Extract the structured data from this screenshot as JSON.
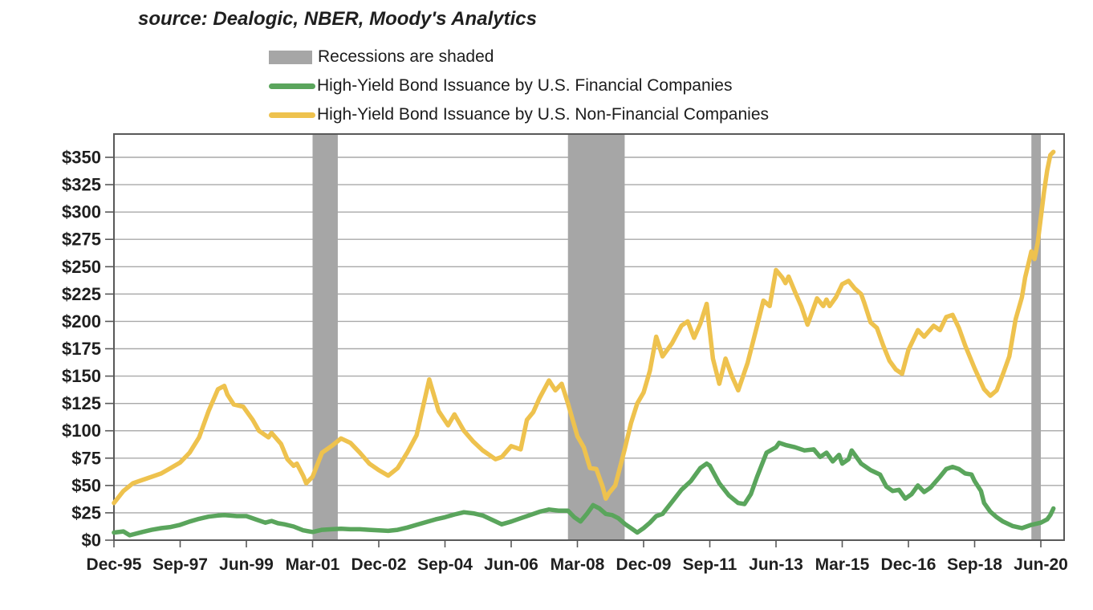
{
  "source_note": "source: Dealogic, NBER, Moody's Analytics",
  "legend": [
    {
      "type": "band",
      "label": "Recessions are shaded",
      "color": "#a6a6a6"
    },
    {
      "type": "line",
      "label": "High-Yield Bond Issuance by U.S. Financial Companies",
      "color": "#5aa55c"
    },
    {
      "type": "line",
      "label": "High-Yield Bond Issuance by U.S. Non-Financial Companies",
      "color": "#eec24e"
    }
  ],
  "chart_data": {
    "type": "line",
    "title": "",
    "x_unit": "months since Dec-1995 (monthly time axis)",
    "x_tick_labels": [
      "Dec-95",
      "Sep-97",
      "Jun-99",
      "Mar-01",
      "Dec-02",
      "Sep-04",
      "Jun-06",
      "Mar-08",
      "Dec-09",
      "Sep-11",
      "Jun-13",
      "Mar-15",
      "Dec-16",
      "Sep-18",
      "Jun-20"
    ],
    "x_tick_months": [
      0,
      21,
      42,
      63,
      84,
      105,
      126,
      147,
      168,
      189,
      210,
      231,
      252,
      273,
      294
    ],
    "xlim_months": [
      0,
      301.4
    ],
    "ylim": [
      0,
      371
    ],
    "y_tick_values": [
      0,
      25,
      50,
      75,
      100,
      125,
      150,
      175,
      200,
      225,
      250,
      275,
      300,
      325,
      350
    ],
    "y_tick_labels": [
      "$0",
      "$25",
      "$50",
      "$75",
      "$100",
      "$125",
      "$150",
      "$175",
      "$200",
      "$225",
      "$250",
      "$275",
      "$300",
      "$325",
      "$350"
    ],
    "grid": "horizontal",
    "legend_position": "top-left above plot",
    "recession_bands": [
      {
        "label": "2001 recession",
        "from_month": 63,
        "to_month": 71
      },
      {
        "label": "2007-09 recession",
        "from_month": 144,
        "to_month": 162
      },
      {
        "label": "2020 recession",
        "from_month": 291,
        "to_month": 294
      }
    ],
    "band_color": "#a6a6a6",
    "series": [
      {
        "name": "High-Yield Bond Issuance by U.S. Financial Companies",
        "color": "#5aa55c",
        "points": [
          [
            0,
            7
          ],
          [
            3,
            8
          ],
          [
            5,
            4.5
          ],
          [
            9,
            7.5
          ],
          [
            12,
            9.5
          ],
          [
            15,
            11
          ],
          [
            18,
            12
          ],
          [
            21,
            14
          ],
          [
            24,
            17
          ],
          [
            27,
            19.5
          ],
          [
            30,
            21.5
          ],
          [
            33,
            22.5
          ],
          [
            35,
            23
          ],
          [
            39,
            22
          ],
          [
            42,
            22
          ],
          [
            45,
            19
          ],
          [
            48,
            16
          ],
          [
            50,
            17.5
          ],
          [
            52,
            15.5
          ],
          [
            54,
            14.5
          ],
          [
            57,
            12.5
          ],
          [
            60,
            9
          ],
          [
            63,
            7.5
          ],
          [
            66,
            9.5
          ],
          [
            69,
            10
          ],
          [
            72,
            10.5
          ],
          [
            75,
            10
          ],
          [
            78,
            10
          ],
          [
            81,
            9.5
          ],
          [
            84,
            9
          ],
          [
            87,
            8.5
          ],
          [
            90,
            9.5
          ],
          [
            93,
            11.5
          ],
          [
            96,
            14
          ],
          [
            99,
            16.5
          ],
          [
            102,
            19
          ],
          [
            105,
            21
          ],
          [
            108,
            23.5
          ],
          [
            111,
            25.5
          ],
          [
            114,
            24.5
          ],
          [
            117,
            22.5
          ],
          [
            120,
            18.5
          ],
          [
            123,
            14.5
          ],
          [
            126,
            17
          ],
          [
            129,
            20
          ],
          [
            132,
            23
          ],
          [
            135,
            26
          ],
          [
            138,
            28
          ],
          [
            141,
            27
          ],
          [
            144,
            27
          ],
          [
            146,
            21
          ],
          [
            148,
            17
          ],
          [
            150,
            24
          ],
          [
            152,
            32
          ],
          [
            154,
            29
          ],
          [
            156,
            24
          ],
          [
            158,
            23
          ],
          [
            160,
            20
          ],
          [
            162,
            15
          ],
          [
            164,
            11
          ],
          [
            166,
            7
          ],
          [
            168,
            11
          ],
          [
            170,
            16
          ],
          [
            172,
            22
          ],
          [
            174,
            24
          ],
          [
            177,
            35
          ],
          [
            180,
            46
          ],
          [
            183,
            54
          ],
          [
            186,
            66
          ],
          [
            188,
            70
          ],
          [
            189,
            68
          ],
          [
            192,
            52
          ],
          [
            195,
            41
          ],
          [
            198,
            34
          ],
          [
            200,
            33
          ],
          [
            202,
            42
          ],
          [
            204,
            58
          ],
          [
            207,
            80
          ],
          [
            210,
            85
          ],
          [
            211,
            89
          ],
          [
            213,
            87
          ],
          [
            216,
            85
          ],
          [
            219,
            82
          ],
          [
            222,
            83
          ],
          [
            224,
            76
          ],
          [
            226,
            80
          ],
          [
            228,
            72
          ],
          [
            230,
            78
          ],
          [
            231,
            70
          ],
          [
            233,
            74
          ],
          [
            234,
            82
          ],
          [
            237,
            70
          ],
          [
            240,
            64
          ],
          [
            243,
            60
          ],
          [
            245,
            49
          ],
          [
            247,
            45
          ],
          [
            249,
            46
          ],
          [
            251,
            38
          ],
          [
            253,
            42
          ],
          [
            255,
            50
          ],
          [
            257,
            44
          ],
          [
            259,
            48
          ],
          [
            262,
            58
          ],
          [
            264,
            65
          ],
          [
            266,
            67
          ],
          [
            268,
            65
          ],
          [
            270,
            61
          ],
          [
            272,
            60
          ],
          [
            273,
            54
          ],
          [
            275,
            45
          ],
          [
            276,
            34
          ],
          [
            278,
            26
          ],
          [
            280,
            21
          ],
          [
            282,
            17
          ],
          [
            285,
            13
          ],
          [
            288,
            11
          ],
          [
            291,
            14
          ],
          [
            294,
            16
          ],
          [
            296,
            19
          ],
          [
            297,
            23
          ],
          [
            298,
            29
          ]
        ]
      },
      {
        "name": "High-Yield Bond Issuance by U.S. Non-Financial Companies",
        "color": "#eec24e",
        "points": [
          [
            0,
            34
          ],
          [
            3,
            45
          ],
          [
            6,
            52
          ],
          [
            9,
            55
          ],
          [
            12,
            58
          ],
          [
            15,
            61
          ],
          [
            18,
            66
          ],
          [
            21,
            71
          ],
          [
            24,
            80
          ],
          [
            27,
            94
          ],
          [
            30,
            118
          ],
          [
            33,
            138
          ],
          [
            35,
            141
          ],
          [
            36,
            133
          ],
          [
            38,
            124
          ],
          [
            41,
            122
          ],
          [
            44,
            110
          ],
          [
            46,
            100
          ],
          [
            49,
            94
          ],
          [
            50,
            98
          ],
          [
            53,
            88
          ],
          [
            55,
            74
          ],
          [
            57,
            68
          ],
          [
            58,
            70
          ],
          [
            60,
            59
          ],
          [
            61,
            52
          ],
          [
            63,
            58
          ],
          [
            66,
            80
          ],
          [
            69,
            86
          ],
          [
            72,
            93
          ],
          [
            75,
            89
          ],
          [
            78,
            80
          ],
          [
            81,
            70
          ],
          [
            84,
            64
          ],
          [
            87,
            59
          ],
          [
            90,
            66
          ],
          [
            93,
            80
          ],
          [
            96,
            96
          ],
          [
            100,
            147
          ],
          [
            103,
            118
          ],
          [
            106,
            105
          ],
          [
            108,
            115
          ],
          [
            111,
            100
          ],
          [
            114,
            90
          ],
          [
            117,
            82
          ],
          [
            121,
            74
          ],
          [
            123,
            76
          ],
          [
            126,
            86
          ],
          [
            129,
            83
          ],
          [
            131,
            110
          ],
          [
            133,
            117
          ],
          [
            135,
            130
          ],
          [
            138,
            146
          ],
          [
            140,
            137
          ],
          [
            142,
            143
          ],
          [
            144,
            125
          ],
          [
            147,
            95
          ],
          [
            149,
            85
          ],
          [
            151,
            66
          ],
          [
            153,
            65
          ],
          [
            155,
            49
          ],
          [
            156,
            38
          ],
          [
            157,
            43
          ],
          [
            159,
            50
          ],
          [
            160,
            61
          ],
          [
            162,
            83
          ],
          [
            164,
            107
          ],
          [
            166,
            125
          ],
          [
            168,
            135
          ],
          [
            170,
            155
          ],
          [
            172,
            186
          ],
          [
            174,
            168
          ],
          [
            177,
            180
          ],
          [
            180,
            196
          ],
          [
            182,
            200
          ],
          [
            184,
            185
          ],
          [
            186,
            198
          ],
          [
            188,
            216
          ],
          [
            190,
            166
          ],
          [
            192,
            143
          ],
          [
            194,
            166
          ],
          [
            196,
            150
          ],
          [
            198,
            137
          ],
          [
            201,
            162
          ],
          [
            204,
            196
          ],
          [
            206,
            219
          ],
          [
            208,
            214
          ],
          [
            210,
            247
          ],
          [
            212,
            240
          ],
          [
            213,
            235
          ],
          [
            214,
            241
          ],
          [
            216,
            227
          ],
          [
            218,
            214
          ],
          [
            220,
            197
          ],
          [
            223,
            221
          ],
          [
            225,
            214
          ],
          [
            226,
            220
          ],
          [
            227,
            214
          ],
          [
            229,
            222
          ],
          [
            231,
            234
          ],
          [
            233,
            237
          ],
          [
            235,
            230
          ],
          [
            237,
            225
          ],
          [
            238,
            217
          ],
          [
            240,
            199
          ],
          [
            242,
            194
          ],
          [
            244,
            178
          ],
          [
            246,
            164
          ],
          [
            248,
            156
          ],
          [
            250,
            152
          ],
          [
            252,
            174
          ],
          [
            255,
            192
          ],
          [
            257,
            186
          ],
          [
            260,
            196
          ],
          [
            262,
            192
          ],
          [
            264,
            204
          ],
          [
            266,
            206
          ],
          [
            268,
            194
          ],
          [
            270,
            178
          ],
          [
            273,
            157
          ],
          [
            276,
            138
          ],
          [
            278,
            132
          ],
          [
            280,
            137
          ],
          [
            282,
            152
          ],
          [
            284,
            168
          ],
          [
            286,
            202
          ],
          [
            288,
            222
          ],
          [
            289,
            240
          ],
          [
            290,
            252
          ],
          [
            291,
            264
          ],
          [
            292,
            257
          ],
          [
            293,
            272
          ],
          [
            294,
            295
          ],
          [
            295,
            318
          ],
          [
            296,
            338
          ],
          [
            297,
            352
          ],
          [
            298,
            355
          ]
        ]
      }
    ]
  },
  "colors": {
    "plot_border": "#595959",
    "gridline": "#a9a9a9",
    "tick": "#595959",
    "text": "#1f1f1f",
    "background": "#ffffff"
  }
}
